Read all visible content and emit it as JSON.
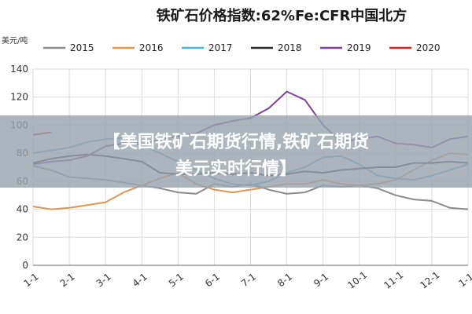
{
  "chart_data": {
    "type": "line",
    "title": "铁矿石价格指数:62%Fe:CFR中国北方",
    "ylabel": "美元/吨",
    "ylim": [
      0,
      140
    ],
    "yticks": [
      0,
      20,
      40,
      60,
      80,
      100,
      120,
      140
    ],
    "xticks": [
      "1-1",
      "2-1",
      "3-1",
      "4-1",
      "5-1",
      "6-1",
      "7-1",
      "8-1",
      "9-1",
      "10-1",
      "11-1",
      "12-1",
      "1-1"
    ],
    "grid": true,
    "legend_position": "top",
    "series": [
      {
        "name": "2015",
        "color": "#8c8c8c",
        "x": [
          0,
          0.5,
          1,
          1.5,
          2,
          2.5,
          3,
          3.5,
          4,
          4.5,
          5,
          5.5,
          6,
          6.5,
          7,
          7.5,
          8,
          8.5,
          9,
          9.5,
          10,
          10.5,
          11,
          11.5,
          12
        ],
        "values": [
          71,
          68,
          63,
          62,
          61,
          59,
          57,
          55,
          52,
          51,
          58,
          56,
          58,
          54,
          51,
          52,
          57,
          56,
          57,
          55,
          50,
          47,
          46,
          41,
          40
        ]
      },
      {
        "name": "2016",
        "color": "#e0974d",
        "x": [
          0,
          0.5,
          1,
          1.5,
          2,
          2.5,
          3,
          3.5,
          4,
          4.5,
          5,
          5.5,
          6,
          6.5,
          7,
          7.5,
          8,
          8.5,
          9,
          9.5,
          10,
          10.5,
          11,
          11.5,
          12
        ],
        "values": [
          42,
          40,
          41,
          43,
          45,
          52,
          57,
          62,
          66,
          58,
          54,
          52,
          54,
          56,
          58,
          58,
          61,
          58,
          57,
          58,
          61,
          68,
          75,
          80,
          79
        ]
      },
      {
        "name": "2017",
        "color": "#4cb3dc",
        "x": [
          0,
          0.5,
          1,
          1.5,
          2,
          2.5,
          3,
          3.5,
          4,
          4.5,
          5,
          5.5,
          6,
          6.5,
          7,
          7.5,
          8,
          8.5,
          9,
          9.5,
          10,
          10.5,
          11,
          11.5,
          12
        ],
        "values": [
          80,
          82,
          84,
          88,
          90,
          91,
          86,
          80,
          74,
          68,
          62,
          58,
          57,
          60,
          66,
          70,
          77,
          78,
          72,
          64,
          62,
          61,
          64,
          68,
          72
        ]
      },
      {
        "name": "2018",
        "color": "#2a2a2a",
        "x": [
          0,
          0.5,
          1,
          1.5,
          2,
          2.5,
          3,
          3.5,
          4,
          4.5,
          5,
          5.5,
          6,
          6.5,
          7,
          7.5,
          8,
          8.5,
          9,
          9.5,
          10,
          10.5,
          11,
          11.5,
          12
        ],
        "values": [
          73,
          76,
          78,
          79,
          78,
          76,
          74,
          66,
          65,
          65,
          66,
          65,
          66,
          64,
          65,
          67,
          66,
          68,
          69,
          70,
          70,
          73,
          73,
          74,
          73
        ]
      },
      {
        "name": "2019",
        "color": "#7e3f9e",
        "x": [
          0,
          0.5,
          1,
          1.5,
          2,
          2.5,
          3,
          3.5,
          4,
          4.5,
          5,
          5.5,
          6,
          6.5,
          7,
          7.5,
          8,
          8.5,
          9,
          9.5,
          10,
          10.5,
          11,
          11.5,
          12
        ],
        "values": [
          72,
          74,
          75,
          78,
          85,
          87,
          86,
          90,
          92,
          94,
          100,
          103,
          105,
          112,
          124,
          118,
          100,
          88,
          90,
          92,
          87,
          86,
          84,
          90,
          92
        ]
      },
      {
        "name": "2020",
        "color": "#d42020",
        "x": [
          0,
          0.5
        ],
        "values": [
          93,
          95
        ]
      }
    ]
  },
  "banner": {
    "line1": "【美国铁矿石期货行情,铁矿石期货",
    "line2": "美元实时行情】"
  }
}
